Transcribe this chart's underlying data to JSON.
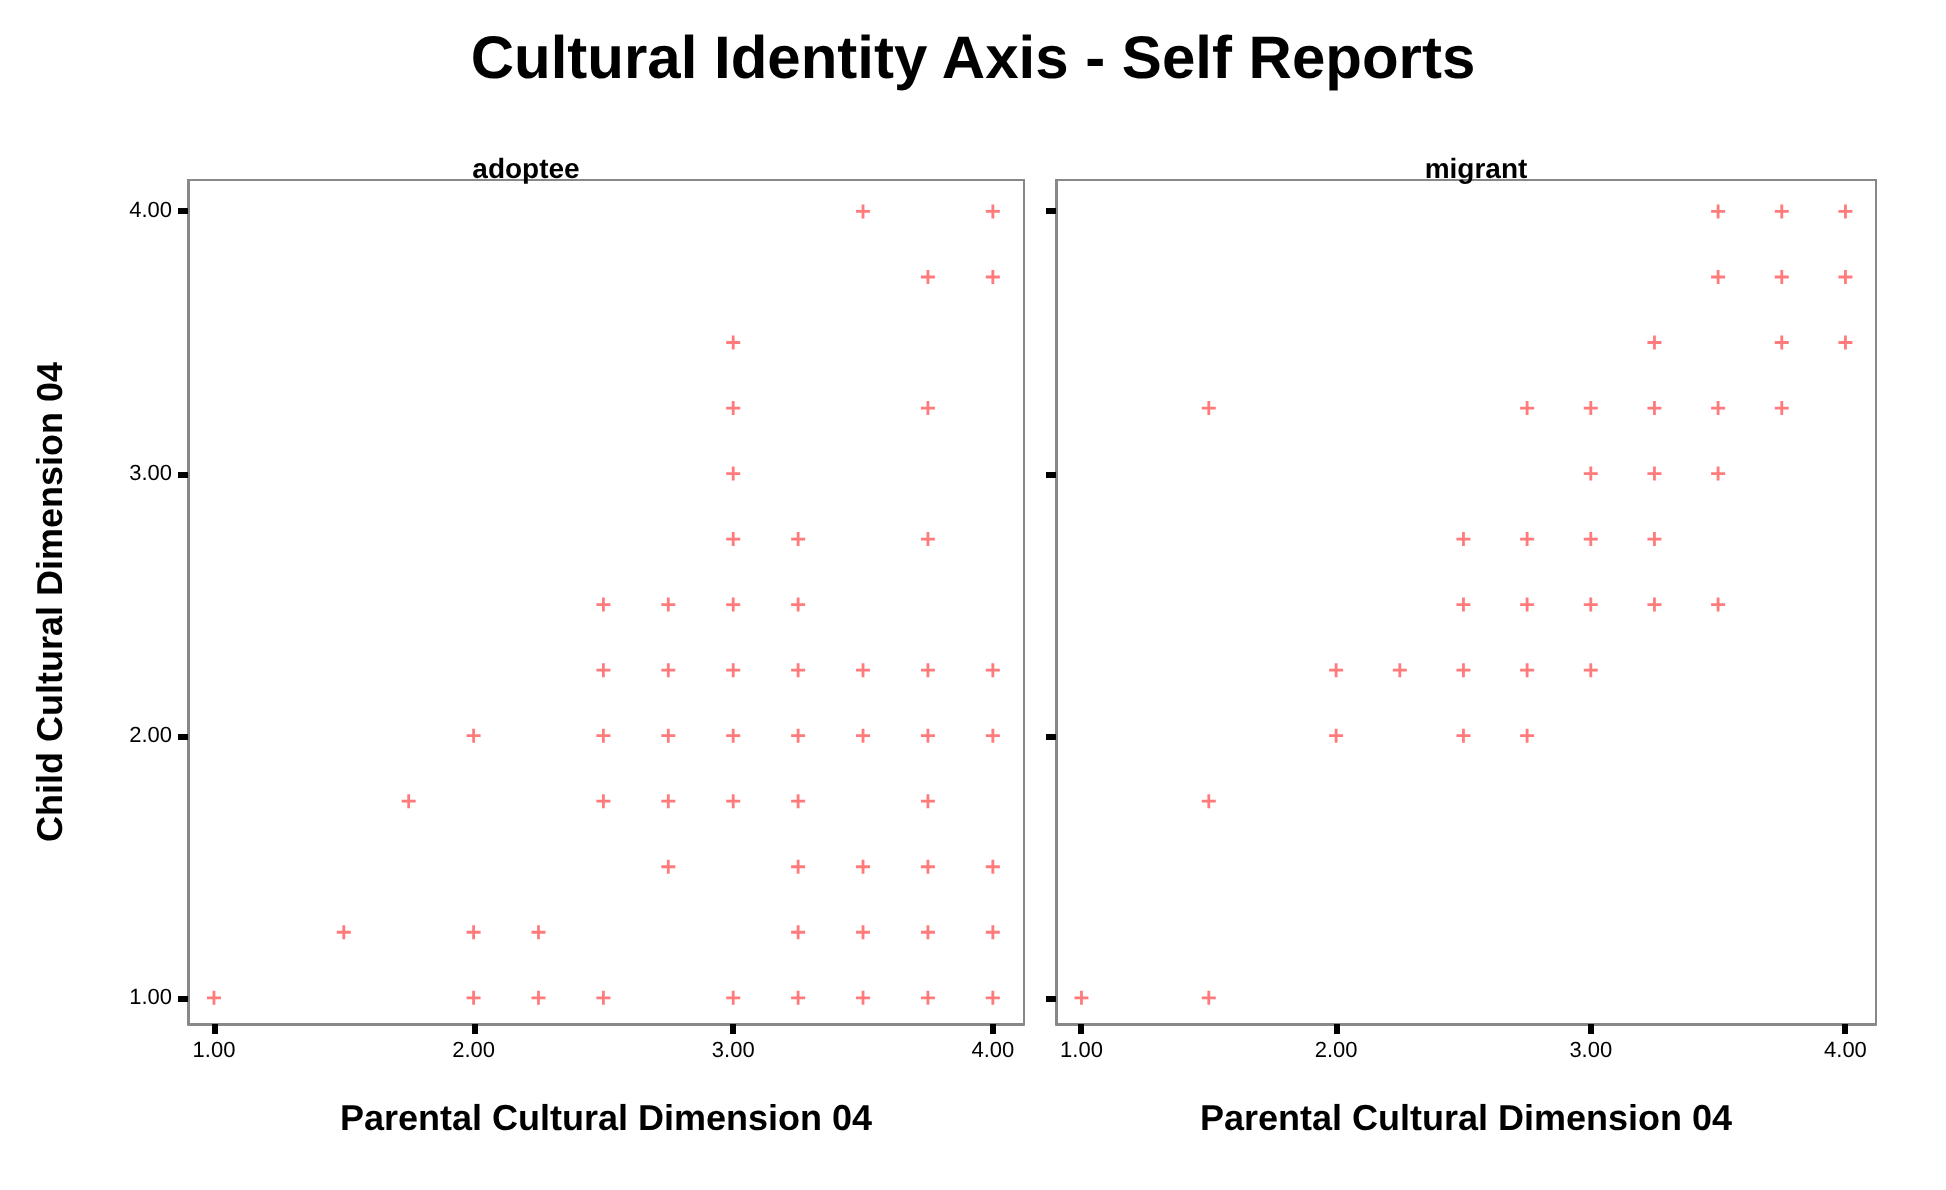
{
  "chart_data": [
    {
      "type": "scatter",
      "title": "Cultural Identity Axis - Self Reports",
      "subtitle": "adoptee",
      "xlabel": "Parental Cultural Dimension 04",
      "ylabel": "Child Cultural Dimension 04",
      "xlim": [
        0.9,
        4.12
      ],
      "ylim": [
        0.9,
        4.12
      ],
      "xticks": [
        {
          "value": 1,
          "label": "1.00"
        },
        {
          "value": 2,
          "label": "2.00"
        },
        {
          "value": 3,
          "label": "3.00"
        },
        {
          "value": 4,
          "label": "4.00"
        }
      ],
      "yticks": [
        {
          "value": 1,
          "label": "1.00"
        },
        {
          "value": 2,
          "label": "2.00"
        },
        {
          "value": 3,
          "label": "3.00"
        },
        {
          "value": 4,
          "label": "4.00"
        }
      ],
      "grid": false,
      "marker": "cross",
      "series": [
        {
          "color": "#ff4d4d",
          "x": [
            3.5,
            4.0,
            3.75,
            4.0,
            3.0,
            3.0,
            3.75,
            3.0,
            3.0,
            3.25,
            3.75,
            2.5,
            2.75,
            3.0,
            3.25,
            2.5,
            2.75,
            3.0,
            3.25,
            3.5,
            3.75,
            4.0,
            2.0,
            2.5,
            2.75,
            3.0,
            3.25,
            3.5,
            3.75,
            4.0,
            1.75,
            2.5,
            2.75,
            3.0,
            3.25,
            3.75,
            2.75,
            3.25,
            3.5,
            3.75,
            4.0,
            1.5,
            2.0,
            2.25,
            3.25,
            3.5,
            3.75,
            4.0,
            1.0,
            2.0,
            2.25,
            2.5,
            3.0,
            3.25,
            3.5,
            3.75,
            4.0
          ],
          "values": [
            4.0,
            4.0,
            3.75,
            3.75,
            3.5,
            3.25,
            3.25,
            3.0,
            2.75,
            2.75,
            2.75,
            2.5,
            2.5,
            2.5,
            2.5,
            2.25,
            2.25,
            2.25,
            2.25,
            2.25,
            2.25,
            2.25,
            2.0,
            2.0,
            2.0,
            2.0,
            2.0,
            2.0,
            2.0,
            2.0,
            1.75,
            1.75,
            1.75,
            1.75,
            1.75,
            1.75,
            1.5,
            1.5,
            1.5,
            1.5,
            1.5,
            1.25,
            1.25,
            1.25,
            1.25,
            1.25,
            1.25,
            1.25,
            1.0,
            1.0,
            1.0,
            1.0,
            1.0,
            1.0,
            1.0,
            1.0,
            1.0
          ]
        }
      ]
    },
    {
      "type": "scatter",
      "title": "migrant",
      "xlabel": "Parental Cultural Dimension 04",
      "xlim": [
        0.9,
        4.12
      ],
      "ylim": [
        0.9,
        4.12
      ],
      "tick_labels": "x",
      "xticks": [
        {
          "value": 1,
          "label": "1.00"
        },
        {
          "value": 2,
          "label": "2.00"
        },
        {
          "value": 3,
          "label": "3.00"
        },
        {
          "value": 4,
          "label": "4.00"
        }
      ],
      "yticks": [
        {
          "value": 1,
          "label": null
        },
        {
          "value": 2,
          "label": null
        },
        {
          "value": 3,
          "label": null
        },
        {
          "value": 4,
          "label": null
        }
      ],
      "grid": false,
      "marker": "cross",
      "series": [
        {
          "color": "#ff4d4d",
          "x": [
            3.5,
            3.75,
            4.0,
            3.5,
            3.75,
            4.0,
            3.25,
            3.75,
            4.0,
            1.5,
            2.75,
            3.0,
            3.25,
            3.5,
            3.75,
            3.0,
            3.25,
            3.5,
            2.5,
            2.75,
            3.0,
            3.25,
            2.5,
            2.75,
            3.0,
            3.25,
            3.5,
            2.0,
            2.25,
            2.5,
            2.75,
            3.0,
            2.0,
            2.5,
            2.75,
            1.5,
            1.0,
            1.5
          ],
          "values": [
            4.0,
            4.0,
            4.0,
            3.75,
            3.75,
            3.75,
            3.5,
            3.5,
            3.5,
            3.25,
            3.25,
            3.25,
            3.25,
            3.25,
            3.25,
            3.0,
            3.0,
            3.0,
            2.75,
            2.75,
            2.75,
            2.75,
            2.5,
            2.5,
            2.5,
            2.5,
            2.5,
            2.25,
            2.25,
            2.25,
            2.25,
            2.25,
            2.0,
            2.0,
            2.0,
            1.75,
            1.0,
            1.0
          ]
        }
      ]
    }
  ]
}
